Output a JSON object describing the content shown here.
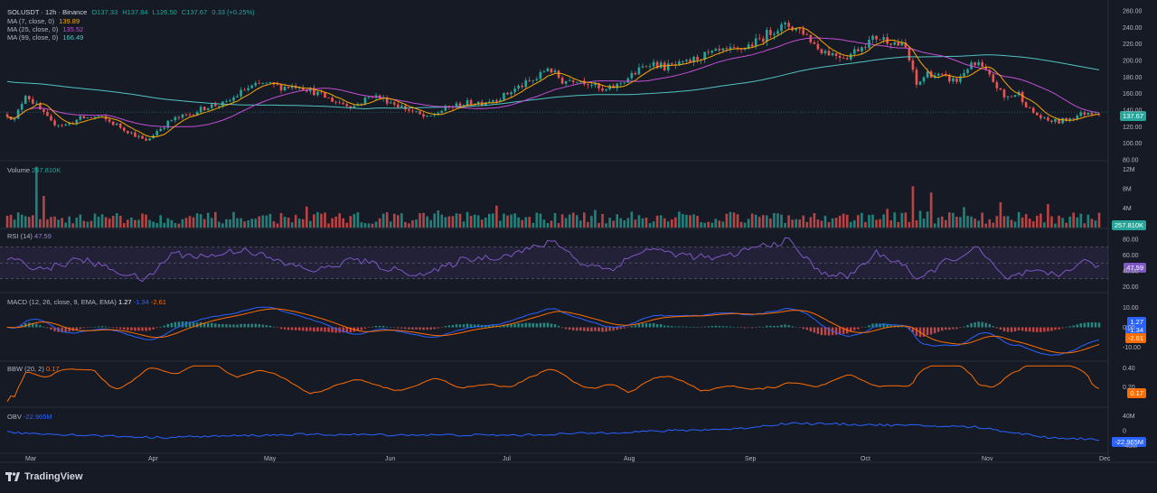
{
  "header": {
    "symbol": "SOLUSDT · 12h · Binance",
    "open": "O137.33",
    "high": "H137.84",
    "low": "L126.50",
    "close": "C137.67",
    "change": "0.33 (+0.25%)"
  },
  "ma_legend": [
    {
      "label": "MA (7, close, 0)",
      "value": "139.89",
      "color": "#f7a600"
    },
    {
      "label": "MA (25, close, 0)",
      "value": "135.52",
      "color": "#c34fd6"
    },
    {
      "label": "MA (99, close, 0)",
      "value": "166.49",
      "color": "#52c3c4"
    }
  ],
  "volume_label": {
    "name": "Volume",
    "value": "257.810K"
  },
  "rsi_label": {
    "name": "RSI (14)",
    "value": "47.59"
  },
  "macd_label": {
    "name": "MACD (12, 26, close, 9, EMA, EMA)",
    "v1": "1.27",
    "v2": "-1.34",
    "v3": "-2.61"
  },
  "bbw_label": {
    "name": "BBW (20, 2)",
    "value": "0.17"
  },
  "obv_label": {
    "name": "OBV",
    "value": "-22.965M"
  },
  "price_tags": {
    "last": "137.67",
    "volume": "257.810K",
    "rsi": "47.59",
    "macd1": "1.27",
    "macd2": "-1.34",
    "macd3": "-2.61",
    "bbw": "0.17",
    "obv": "-22.965M"
  },
  "colors": {
    "up": "#26a69a",
    "down": "#ef5350",
    "ma7": "#f7a600",
    "ma25": "#c34fd6",
    "ma99": "#52c3c4",
    "rsi": "#7e57c2",
    "macd": "#2962ff",
    "signal": "#ff6d00",
    "bbw": "#ff6d00",
    "obv": "#2962ff"
  },
  "footer": {
    "brand": "TradingView"
  },
  "chart_data": {
    "type": "candlestick",
    "price_axis_ticks": [
      "260.00",
      "240.00",
      "220.00",
      "200.00",
      "180.00",
      "160.00",
      "140.00",
      "120.00",
      "100.00",
      "80.00"
    ],
    "ylim": [
      80,
      260
    ],
    "volume_axis_ticks": [
      "12M",
      "8M",
      "4M"
    ],
    "rsi_axis_ticks": [
      "80.00",
      "60.00",
      "40.00",
      "20.00"
    ],
    "macd_axis_ticks": [
      "10.00",
      "0.00",
      "-10.00"
    ],
    "bbw_axis_ticks": [
      "0.40",
      "0.20"
    ],
    "obv_axis_ticks": [
      "40M",
      "0",
      "-40M"
    ],
    "x_axis_labels": [
      "Mar",
      "Apr",
      "May",
      "Jun",
      "Jul",
      "Aug",
      "Sep",
      "Oct",
      "Nov",
      "Dec"
    ],
    "price_anchors": [
      [
        0,
        135
      ],
      [
        2,
        128
      ],
      [
        5,
        160
      ],
      [
        8,
        145
      ],
      [
        12,
        125
      ],
      [
        16,
        122
      ],
      [
        20,
        130
      ],
      [
        25,
        132
      ],
      [
        30,
        122
      ],
      [
        35,
        110
      ],
      [
        38,
        102
      ],
      [
        41,
        115
      ],
      [
        45,
        128
      ],
      [
        50,
        135
      ],
      [
        55,
        145
      ],
      [
        60,
        148
      ],
      [
        65,
        165
      ],
      [
        70,
        172
      ],
      [
        75,
        168
      ],
      [
        80,
        170
      ],
      [
        85,
        160
      ],
      [
        90,
        150
      ],
      [
        95,
        145
      ],
      [
        100,
        158
      ],
      [
        105,
        150
      ],
      [
        110,
        140
      ],
      [
        115,
        130
      ],
      [
        120,
        142
      ],
      [
        125,
        148
      ],
      [
        130,
        150
      ],
      [
        135,
        155
      ],
      [
        140,
        168
      ],
      [
        145,
        178
      ],
      [
        148,
        192
      ],
      [
        152,
        175
      ],
      [
        156,
        178
      ],
      [
        160,
        172
      ],
      [
        163,
        162
      ],
      [
        167,
        170
      ],
      [
        172,
        185
      ],
      [
        176,
        198
      ],
      [
        180,
        192
      ],
      [
        185,
        195
      ],
      [
        190,
        205
      ],
      [
        195,
        210
      ],
      [
        200,
        212
      ],
      [
        205,
        222
      ],
      [
        210,
        238
      ],
      [
        214,
        242
      ],
      [
        218,
        235
      ],
      [
        222,
        215
      ],
      [
        226,
        208
      ],
      [
        230,
        205
      ],
      [
        234,
        218
      ],
      [
        238,
        228
      ],
      [
        242,
        224
      ],
      [
        246,
        215
      ],
      [
        249,
        170
      ],
      [
        252,
        185
      ],
      [
        256,
        180
      ],
      [
        260,
        175
      ],
      [
        263,
        192
      ],
      [
        266,
        195
      ],
      [
        270,
        175
      ],
      [
        273,
        155
      ],
      [
        277,
        160
      ],
      [
        280,
        140
      ],
      [
        284,
        128
      ],
      [
        288,
        126
      ],
      [
        292,
        132
      ],
      [
        296,
        138
      ],
      [
        299,
        137
      ]
    ],
    "rsi_anchors": [
      [
        0,
        55
      ],
      [
        10,
        42
      ],
      [
        20,
        55
      ],
      [
        30,
        40
      ],
      [
        38,
        28
      ],
      [
        45,
        62
      ],
      [
        55,
        58
      ],
      [
        65,
        68
      ],
      [
        75,
        50
      ],
      [
        85,
        40
      ],
      [
        95,
        55
      ],
      [
        105,
        42
      ],
      [
        115,
        35
      ],
      [
        125,
        55
      ],
      [
        135,
        58
      ],
      [
        145,
        70
      ],
      [
        150,
        78
      ],
      [
        157,
        50
      ],
      [
        165,
        42
      ],
      [
        175,
        68
      ],
      [
        185,
        60
      ],
      [
        195,
        55
      ],
      [
        205,
        70
      ],
      [
        214,
        78
      ],
      [
        222,
        40
      ],
      [
        230,
        32
      ],
      [
        238,
        62
      ],
      [
        246,
        48
      ],
      [
        249,
        25
      ],
      [
        256,
        50
      ],
      [
        266,
        68
      ],
      [
        273,
        30
      ],
      [
        280,
        38
      ],
      [
        288,
        34
      ],
      [
        294,
        52
      ],
      [
        299,
        47.59
      ]
    ],
    "volume_spikes": [
      [
        8,
        12.5
      ],
      [
        10,
        6.5
      ],
      [
        248,
        8.5
      ],
      [
        253,
        7.2
      ],
      [
        272,
        5.2
      ],
      [
        285,
        4.8
      ]
    ]
  }
}
